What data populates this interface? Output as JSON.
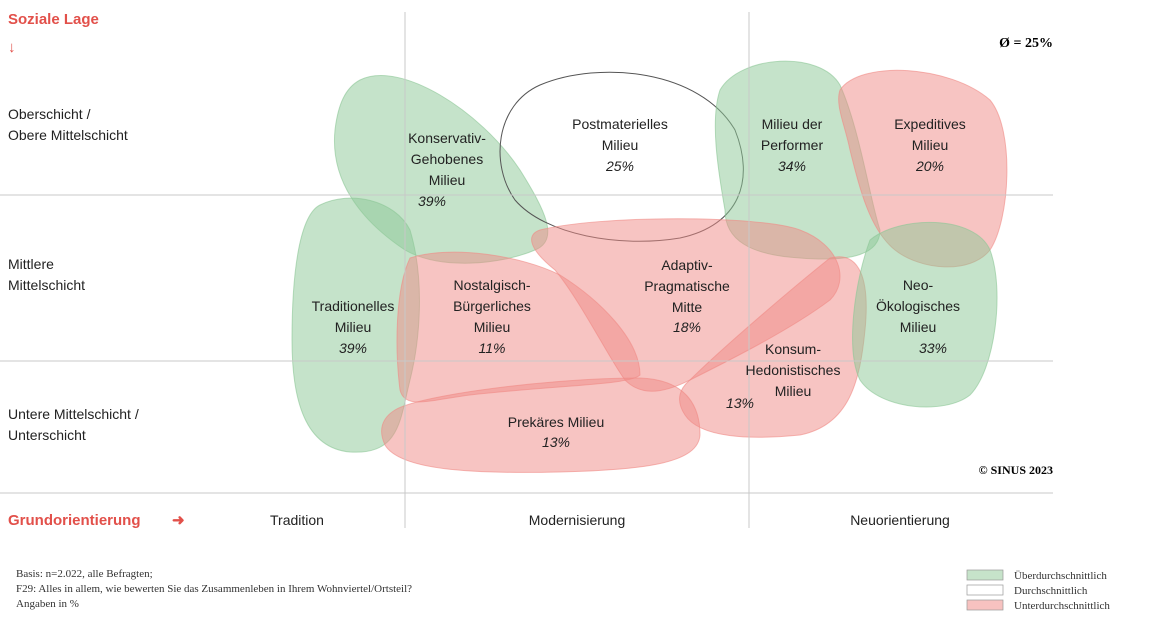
{
  "axis": {
    "y_title": "Soziale Lage",
    "y_arrow": "↓",
    "x_title": "Grundorientierung",
    "x_arrow": "➜"
  },
  "average": "Ø = 25%",
  "rows": [
    {
      "lines": [
        "Oberschicht /",
        "Obere Mittelschicht"
      ]
    },
    {
      "lines": [
        "Mittlere",
        "Mittelschicht"
      ]
    },
    {
      "lines": [
        "Untere Mittelschicht /",
        "Unterschicht"
      ]
    }
  ],
  "columns": [
    "Tradition",
    "Modernisierung",
    "Neuorientierung"
  ],
  "milieus": [
    {
      "lines": [
        "Konservativ-",
        "Gehobenes",
        "Milieu"
      ],
      "value": "39%",
      "color": "#8cc796"
    },
    {
      "lines": [
        "Postmaterielles",
        "Milieu"
      ],
      "value": "25%",
      "color": "#ffffff"
    },
    {
      "lines": [
        "Milieu der",
        "Performer"
      ],
      "value": "34%",
      "color": "#8cc796"
    },
    {
      "lines": [
        "Expeditives",
        "Milieu"
      ],
      "value": "20%",
      "color": "#f08a86"
    },
    {
      "lines": [
        "Traditionelles",
        "Milieu"
      ],
      "value": "39%",
      "color": "#8cc796"
    },
    {
      "lines": [
        "Adaptiv-",
        "Pragmatische",
        "Mitte"
      ],
      "value": "18%",
      "color": "#f08a86"
    },
    {
      "lines": [
        "Nostalgisch-",
        "Bürgerliches",
        "Milieu"
      ],
      "value": "11%",
      "color": "#f08a86"
    },
    {
      "lines": [
        "Konsum-",
        "Hedonistisches",
        "Milieu"
      ],
      "value": "13%",
      "color": "#f08a86"
    },
    {
      "lines": [
        "Neo-",
        "Ökologisches",
        "Milieu"
      ],
      "value": "33%",
      "color": "#8cc796"
    },
    {
      "lines": [
        "Prekäres Milieu"
      ],
      "value": "13%",
      "color": "#f08a86"
    }
  ],
  "copyright": "© SINUS 2023",
  "notes": [
    "Basis: n=2.022, alle Befragten;",
    "F29: Alles in allem, wie bewerten Sie das Zusammenleben in Ihrem Wohnviertel/Ortsteil?",
    "Angaben in %"
  ],
  "legend": [
    {
      "name": "Überdurchschnittlich",
      "color": "#c6e3ca"
    },
    {
      "name": "Durchschnittlich",
      "color": "#ffffff"
    },
    {
      "name": "Unterdurchschnittlich",
      "color": "#f7c2c0"
    }
  ]
}
